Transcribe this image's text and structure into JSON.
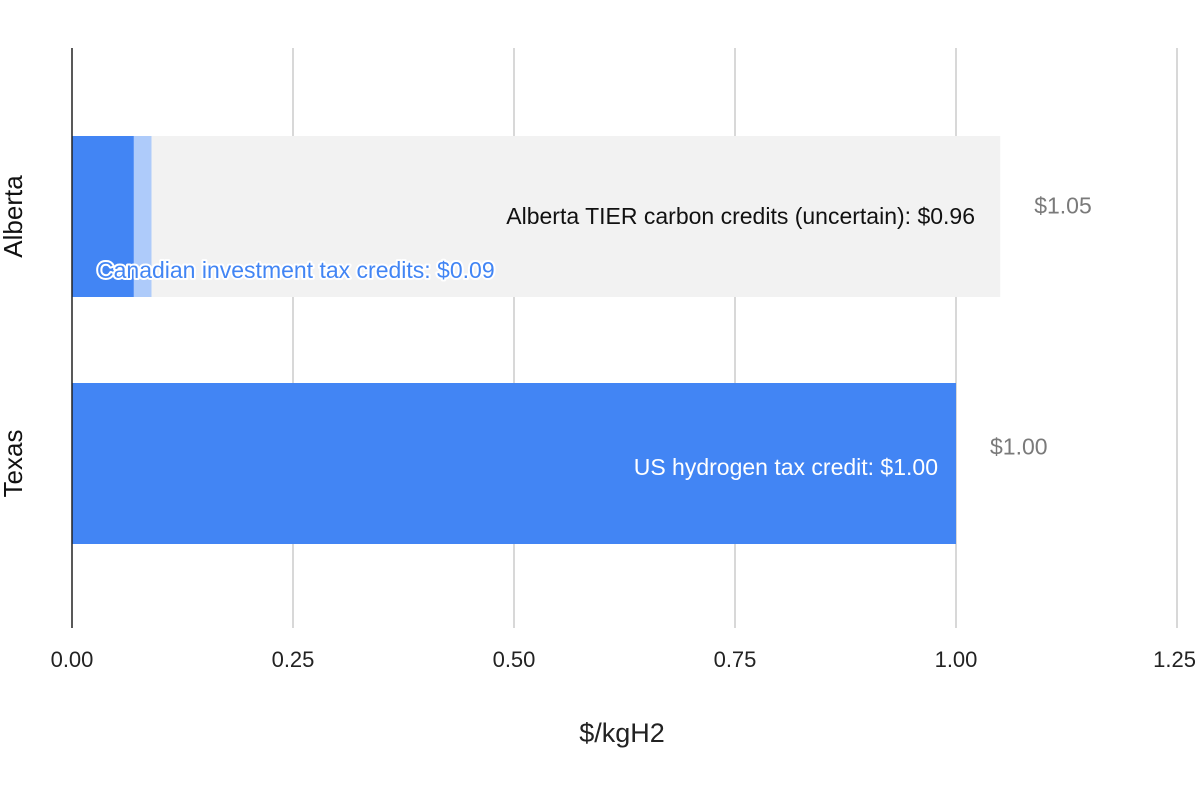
{
  "chart_data": {
    "type": "bar",
    "orientation": "horizontal",
    "stacked": true,
    "xlabel": "$/kgH2",
    "ylabel": "",
    "xlim": [
      0,
      1.25
    ],
    "x_ticks": [
      "0.00",
      "0.25",
      "0.50",
      "0.75",
      "1.00",
      "1.25"
    ],
    "grid": true,
    "legend": "none",
    "categories": [
      "Alberta",
      "Texas"
    ],
    "series": [
      {
        "color": "#4285f4",
        "values": [
          0.07,
          1.0
        ]
      },
      {
        "color": "#aecbfa",
        "values": [
          0.02,
          0
        ]
      },
      {
        "color": "#f2f2f2",
        "values": [
          0.96,
          0
        ]
      }
    ],
    "segment_labels": [
      {
        "category": "Alberta",
        "text": "Alberta TIER carbon credits (uncertain): $0.96",
        "color": "#111111"
      },
      {
        "category": "Alberta",
        "text": "Canadian investment tax credits: $0.09",
        "color": "#4285f4"
      },
      {
        "category": "Texas",
        "text": "US hydrogen tax credit: $1.00",
        "color": "#ffffff"
      }
    ],
    "totals": [
      {
        "category": "Alberta",
        "value": 1.05,
        "text": "$1.05"
      },
      {
        "category": "Texas",
        "value": 1.0,
        "text": "$1.00"
      }
    ]
  }
}
